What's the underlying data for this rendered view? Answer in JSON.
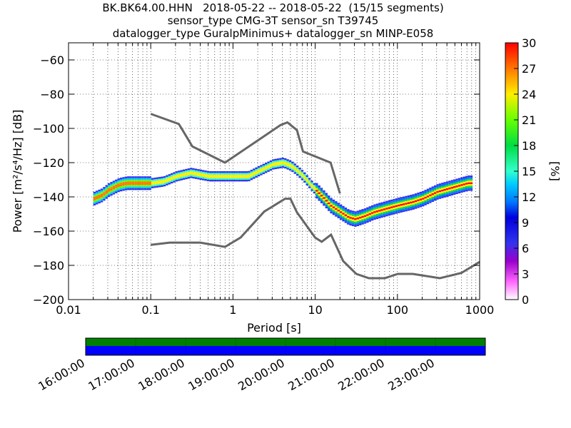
{
  "header": {
    "line1": "BK.BK64.00.HHN   2018-05-22 -- 2018-05-22  (15/15 segments)",
    "line2": "sensor_type CMG-3T sensor_sn T39745",
    "line3": "datalogger_type GuralpMinimus+ datalogger_sn MINP-E058"
  },
  "chart_data": [
    {
      "type": "heatmap",
      "title": "BK.BK64.00.HHN   2018-05-22 -- 2018-05-22  (15/15 segments)",
      "xlabel": "Period [s]",
      "ylabel": "Power [m²/s⁴/Hz] [dB]",
      "x_scale": "log",
      "xlim": [
        0.01,
        1000
      ],
      "ylim": [
        -200,
        -50
      ],
      "x_ticks": [
        "0.01",
        "0.1",
        "1",
        "10",
        "100",
        "1000"
      ],
      "y_ticks": [
        "−60",
        "−80",
        "−100",
        "−120",
        "−140",
        "−160",
        "−180",
        "−200"
      ],
      "grid": true,
      "colorbar": {
        "label": "[%]",
        "range": [
          0,
          30
        ],
        "ticks": [
          "0",
          "3",
          "6",
          "9",
          "12",
          "15",
          "18",
          "21",
          "24",
          "27",
          "30"
        ],
        "colormap": "pqlx"
      },
      "noise_models": [
        {
          "name": "NHNM",
          "x": [
            0.1,
            0.22,
            0.32,
            0.8,
            3.8,
            4.6,
            6,
            7.1,
            15.4,
            20
          ],
          "y": [
            -91.5,
            -97.4,
            -110.5,
            -120,
            -98,
            -96.5,
            -101,
            -113.5,
            -120,
            -138
          ]
        },
        {
          "name": "NLNM",
          "x": [
            0.1,
            0.17,
            0.4,
            0.8,
            1.24,
            2.4,
            4.3,
            5,
            6,
            10,
            12,
            15.6,
            21.9,
            31.6,
            45,
            70,
            101,
            154,
            328,
            600,
            1000
          ],
          "y": [
            -168,
            -166.7,
            -166.7,
            -169.2,
            -163.7,
            -148.6,
            -141.1,
            -141.1,
            -149,
            -163.8,
            -166.2,
            -162.1,
            -177.5,
            -185,
            -187.5,
            -187.5,
            -185,
            -185,
            -187.5,
            -184.4,
            -178
          ]
        }
      ],
      "psd_mode": {
        "x": [
          0.02,
          0.025,
          0.03,
          0.04,
          0.05,
          0.07,
          0.1,
          0.14,
          0.2,
          0.3,
          0.5,
          0.7,
          1,
          1.5,
          2,
          3,
          4,
          5,
          6,
          7,
          9,
          12,
          15,
          20,
          25,
          30,
          40,
          50,
          70,
          100,
          150,
          200,
          300,
          500,
          700
        ],
        "y": [
          -141,
          -139,
          -136,
          -133,
          -132,
          -132,
          -132,
          -131,
          -128,
          -126,
          -128,
          -128,
          -128,
          -128,
          -125,
          -121,
          -120,
          -122,
          -125,
          -128,
          -134,
          -140,
          -145,
          -149,
          -152,
          -153,
          -151,
          -149,
          -147,
          -145,
          -143,
          -141,
          -137,
          -134,
          -132
        ]
      }
    },
    {
      "type": "timeline",
      "ticks": [
        "16:00:00",
        "17:00:00",
        "18:00:00",
        "19:00:00",
        "20:00:00",
        "21:00:00",
        "22:00:00",
        "23:00:00"
      ],
      "bars": [
        {
          "name": "data",
          "color": "#008000"
        },
        {
          "name": "psd",
          "color": "#0000ff"
        }
      ]
    }
  ],
  "colors": {
    "model_line": "#666666",
    "grid": "#000000"
  }
}
